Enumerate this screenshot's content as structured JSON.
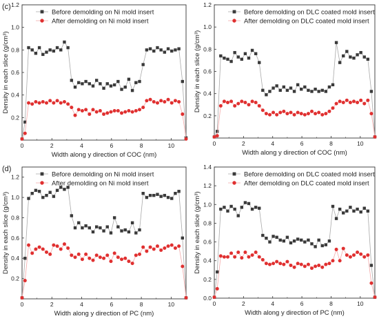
{
  "chart_data": [
    {
      "id": "c",
      "panel_label": "(c)",
      "type": "scatter",
      "xlabel": "Width along y direction of COC (nm)",
      "ylabel": "Density in each slice (g/cm³)",
      "xlim": [
        0,
        11
      ],
      "ylim": [
        0,
        1.2
      ],
      "xticks": [
        0,
        2,
        4,
        6,
        8,
        10
      ],
      "yticks": [
        0.2,
        0.4,
        0.6,
        0.8,
        1.0,
        1.2
      ],
      "ytick_labels": [
        "0.2",
        "0.4",
        "0.6",
        "0.8",
        "1.0",
        "1.2"
      ],
      "legend_position": "top-left",
      "series": [
        {
          "name": "Before demolding on Ni mold insert",
          "marker": "square",
          "color": "#3a3a3a",
          "line_color": "#a8a8a8",
          "x": [
            0,
            0.2,
            0.44,
            0.68,
            0.92,
            1.16,
            1.4,
            1.64,
            1.88,
            2.12,
            2.36,
            2.6,
            2.84,
            3.08,
            3.32,
            3.56,
            3.8,
            4.04,
            4.28,
            4.52,
            4.76,
            5.0,
            5.24,
            5.48,
            5.72,
            5.96,
            6.2,
            6.44,
            6.68,
            6.92,
            7.16,
            7.4,
            7.64,
            7.88,
            8.12,
            8.36,
            8.6,
            8.84,
            9.08,
            9.32,
            9.56,
            9.8,
            10.04,
            10.28,
            10.52,
            10.76,
            11.0
          ],
          "y": [
            0.01,
            0.16,
            0.82,
            0.8,
            0.77,
            0.82,
            0.76,
            0.78,
            0.8,
            0.79,
            0.82,
            0.8,
            0.87,
            0.82,
            0.53,
            0.47,
            0.51,
            0.5,
            0.52,
            0.5,
            0.48,
            0.53,
            0.5,
            0.46,
            0.5,
            0.48,
            0.49,
            0.52,
            0.45,
            0.47,
            0.54,
            0.44,
            0.51,
            0.52,
            0.67,
            0.8,
            0.81,
            0.79,
            0.82,
            0.8,
            0.78,
            0.81,
            0.79,
            0.8,
            0.81,
            0.52,
            0.02
          ]
        },
        {
          "name": "After demolding on Ni mold insert",
          "marker": "circle",
          "color": "#e03030",
          "line_color": "#f3a8a8",
          "x": [
            0,
            0.2,
            0.44,
            0.68,
            0.92,
            1.16,
            1.4,
            1.64,
            1.88,
            2.12,
            2.36,
            2.6,
            2.84,
            3.08,
            3.32,
            3.56,
            3.8,
            4.04,
            4.28,
            4.52,
            4.76,
            5.0,
            5.24,
            5.48,
            5.72,
            5.96,
            6.2,
            6.44,
            6.68,
            6.92,
            7.16,
            7.4,
            7.64,
            7.88,
            8.12,
            8.36,
            8.6,
            8.84,
            9.08,
            9.32,
            9.56,
            9.8,
            10.04,
            10.28,
            10.52,
            10.76,
            11.0
          ],
          "y": [
            0.01,
            0.06,
            0.33,
            0.32,
            0.34,
            0.33,
            0.34,
            0.33,
            0.35,
            0.33,
            0.35,
            0.33,
            0.34,
            0.32,
            0.29,
            0.22,
            0.27,
            0.26,
            0.27,
            0.23,
            0.27,
            0.25,
            0.26,
            0.23,
            0.24,
            0.25,
            0.26,
            0.26,
            0.24,
            0.25,
            0.26,
            0.25,
            0.26,
            0.27,
            0.29,
            0.35,
            0.36,
            0.34,
            0.33,
            0.35,
            0.34,
            0.36,
            0.33,
            0.35,
            0.34,
            0.23,
            0.01
          ]
        }
      ]
    },
    {
      "id": "c2",
      "panel_label": "",
      "type": "scatter",
      "xlabel": "Width along y direction of COC (nm)",
      "ylabel": "Density in each slice (g/cm³)",
      "xlim": [
        0,
        11
      ],
      "ylim": [
        0,
        1.2
      ],
      "xticks": [
        0,
        2,
        4,
        6,
        8,
        10
      ],
      "yticks": [
        0.2,
        0.4,
        0.6,
        0.8,
        1.0,
        1.2
      ],
      "ytick_labels": [
        "0.2",
        "0.4",
        "0.6",
        "0.8",
        "1.0",
        "1.2"
      ],
      "legend_position": "top-left",
      "series": [
        {
          "name": "Before demolding on DLC coated mold insert",
          "marker": "square",
          "color": "#3a3a3a",
          "line_color": "#a8a8a8",
          "x": [
            0,
            0.2,
            0.44,
            0.68,
            0.92,
            1.16,
            1.4,
            1.64,
            1.88,
            2.12,
            2.36,
            2.6,
            2.84,
            3.08,
            3.32,
            3.56,
            3.8,
            4.04,
            4.28,
            4.52,
            4.76,
            5.0,
            5.24,
            5.48,
            5.72,
            5.96,
            6.2,
            6.44,
            6.68,
            6.92,
            7.16,
            7.4,
            7.64,
            7.88,
            8.12,
            8.36,
            8.6,
            8.84,
            9.08,
            9.32,
            9.56,
            9.8,
            10.04,
            10.28,
            10.52,
            10.76,
            11.0
          ],
          "y": [
            0.01,
            0.06,
            0.74,
            0.72,
            0.71,
            0.69,
            0.77,
            0.73,
            0.71,
            0.76,
            0.72,
            0.79,
            0.76,
            0.68,
            0.43,
            0.39,
            0.42,
            0.45,
            0.47,
            0.43,
            0.46,
            0.43,
            0.45,
            0.42,
            0.48,
            0.44,
            0.46,
            0.43,
            0.42,
            0.44,
            0.42,
            0.43,
            0.42,
            0.46,
            0.48,
            0.86,
            0.68,
            0.74,
            0.78,
            0.73,
            0.72,
            0.75,
            0.77,
            0.73,
            0.71,
            0.42,
            0.01
          ]
        },
        {
          "name": "After demolding on DLC coated mold insert",
          "marker": "circle",
          "color": "#e03030",
          "line_color": "#f3a8a8",
          "x": [
            0,
            0.2,
            0.44,
            0.68,
            0.92,
            1.16,
            1.4,
            1.64,
            1.88,
            2.12,
            2.36,
            2.6,
            2.84,
            3.08,
            3.32,
            3.56,
            3.8,
            4.04,
            4.28,
            4.52,
            4.76,
            5.0,
            5.24,
            5.48,
            5.72,
            5.96,
            6.2,
            6.44,
            6.68,
            6.92,
            7.16,
            7.4,
            7.64,
            7.88,
            8.12,
            8.36,
            8.6,
            8.84,
            9.08,
            9.32,
            9.56,
            9.8,
            10.04,
            10.28,
            10.52,
            10.76,
            11.0
          ],
          "y": [
            0.01,
            0.02,
            0.29,
            0.33,
            0.32,
            0.33,
            0.29,
            0.31,
            0.33,
            0.32,
            0.3,
            0.33,
            0.32,
            0.29,
            0.25,
            0.22,
            0.21,
            0.23,
            0.21,
            0.23,
            0.24,
            0.22,
            0.23,
            0.21,
            0.23,
            0.22,
            0.21,
            0.22,
            0.24,
            0.22,
            0.23,
            0.21,
            0.22,
            0.24,
            0.27,
            0.31,
            0.33,
            0.32,
            0.34,
            0.32,
            0.33,
            0.32,
            0.34,
            0.31,
            0.34,
            0.22,
            0.01
          ]
        }
      ]
    },
    {
      "id": "d",
      "panel_label": "(d)",
      "type": "scatter",
      "xlabel": "Width along y direction of PC (nm)",
      "ylabel": "Density in each slice (g/cm³)",
      "xlim": [
        0,
        11
      ],
      "ylim": [
        0,
        1.3
      ],
      "xticks": [
        0,
        2,
        4,
        6,
        8,
        10
      ],
      "yticks": [
        0.2,
        0.4,
        0.6,
        0.8,
        1.0,
        1.2
      ],
      "ytick_labels": [
        "0.2",
        "0.4",
        "0.6",
        "0.8",
        "1.0",
        "1.2"
      ],
      "legend_position": "top-left",
      "series": [
        {
          "name": "Before demolding on Ni mold insert",
          "marker": "square",
          "color": "#3a3a3a",
          "line_color": "#a8a8a8",
          "x": [
            0,
            0.2,
            0.44,
            0.68,
            0.92,
            1.16,
            1.4,
            1.64,
            1.88,
            2.12,
            2.36,
            2.6,
            2.84,
            3.08,
            3.32,
            3.56,
            3.8,
            4.04,
            4.28,
            4.52,
            4.76,
            5.0,
            5.24,
            5.48,
            5.72,
            5.96,
            6.2,
            6.44,
            6.68,
            6.92,
            7.16,
            7.4,
            7.64,
            7.88,
            8.12,
            8.36,
            8.6,
            8.84,
            9.08,
            9.32,
            9.56,
            9.8,
            10.04,
            10.28,
            10.52,
            10.76,
            11.0
          ],
          "y": [
            0.01,
            0.4,
            0.99,
            1.04,
            1.07,
            1.06,
            1.0,
            1.02,
            1.05,
            1.01,
            1.07,
            1.1,
            1.08,
            1.1,
            0.82,
            0.7,
            0.75,
            0.7,
            0.72,
            0.7,
            0.66,
            0.71,
            0.7,
            0.67,
            0.71,
            0.65,
            0.8,
            0.71,
            0.67,
            0.68,
            0.66,
            0.75,
            0.65,
            0.68,
            1.04,
            1.0,
            1.02,
            1.02,
            1.03,
            1.01,
            1.02,
            1.0,
            0.99,
            1.04,
            1.06,
            0.6,
            0.01
          ]
        },
        {
          "name": "After demolding on Ni mold insert",
          "marker": "circle",
          "color": "#e03030",
          "line_color": "#f3a8a8",
          "x": [
            0,
            0.2,
            0.44,
            0.68,
            0.92,
            1.16,
            1.4,
            1.64,
            1.88,
            2.12,
            2.36,
            2.6,
            2.84,
            3.08,
            3.32,
            3.56,
            3.8,
            4.04,
            4.28,
            4.52,
            4.76,
            5.0,
            5.24,
            5.48,
            5.72,
            5.96,
            6.2,
            6.44,
            6.68,
            6.92,
            7.16,
            7.4,
            7.64,
            7.88,
            8.12,
            8.36,
            8.6,
            8.84,
            9.08,
            9.32,
            9.56,
            9.8,
            10.04,
            10.28,
            10.52,
            10.76,
            11.0
          ],
          "y": [
            0.01,
            0.18,
            0.53,
            0.45,
            0.49,
            0.51,
            0.49,
            0.46,
            0.44,
            0.53,
            0.52,
            0.49,
            0.54,
            0.5,
            0.43,
            0.41,
            0.44,
            0.39,
            0.44,
            0.4,
            0.38,
            0.43,
            0.41,
            0.4,
            0.43,
            0.37,
            0.45,
            0.41,
            0.39,
            0.4,
            0.37,
            0.35,
            0.43,
            0.44,
            0.51,
            0.47,
            0.51,
            0.49,
            0.52,
            0.48,
            0.5,
            0.52,
            0.53,
            0.5,
            0.52,
            0.32,
            0.01
          ]
        }
      ]
    },
    {
      "id": "d2",
      "panel_label": "",
      "type": "scatter",
      "xlabel": "Width along y direction of PC (nm)",
      "ylabel": "Density in each slice (g/cm³)",
      "xlim": [
        0,
        11
      ],
      "ylim": [
        0,
        1.4
      ],
      "xticks": [
        0,
        2,
        4,
        6,
        8,
        10
      ],
      "yticks": [
        0.0,
        0.2,
        0.4,
        0.6,
        0.8,
        1.0,
        1.2,
        1.4
      ],
      "ytick_labels": [
        "0.0",
        "0.2",
        "0.4",
        "0.6",
        "0.8",
        "1.0",
        "1.2",
        "1.4"
      ],
      "legend_position": "top-left",
      "series": [
        {
          "name": "Before demolding on DLC coated mold insert",
          "marker": "square",
          "color": "#3a3a3a",
          "line_color": "#a8a8a8",
          "x": [
            0,
            0.2,
            0.44,
            0.68,
            0.92,
            1.16,
            1.4,
            1.64,
            1.88,
            2.12,
            2.36,
            2.6,
            2.84,
            3.08,
            3.32,
            3.56,
            3.8,
            4.04,
            4.28,
            4.52,
            4.76,
            5.0,
            5.24,
            5.48,
            5.72,
            5.96,
            6.2,
            6.44,
            6.68,
            6.92,
            7.16,
            7.4,
            7.64,
            7.88,
            8.12,
            8.36,
            8.6,
            8.84,
            9.08,
            9.32,
            9.56,
            9.8,
            10.04,
            10.28,
            10.52,
            10.76,
            11.0
          ],
          "y": [
            0.01,
            0.28,
            0.95,
            0.97,
            0.93,
            0.98,
            0.95,
            0.88,
            0.97,
            1.02,
            1.01,
            0.95,
            0.97,
            0.96,
            0.67,
            0.64,
            0.6,
            0.66,
            0.65,
            0.62,
            0.61,
            0.65,
            0.59,
            0.61,
            0.63,
            0.62,
            0.6,
            0.62,
            0.58,
            0.55,
            0.62,
            0.56,
            0.57,
            0.61,
            0.98,
            0.85,
            0.95,
            0.91,
            0.93,
            0.97,
            0.93,
            0.95,
            0.92,
            0.96,
            0.93,
            0.35,
            0.01
          ]
        },
        {
          "name": "After demolding on DLC coated mold insert",
          "marker": "circle",
          "color": "#e03030",
          "line_color": "#f3a8a8",
          "x": [
            0,
            0.2,
            0.44,
            0.68,
            0.92,
            1.16,
            1.4,
            1.64,
            1.88,
            2.12,
            2.36,
            2.6,
            2.84,
            3.08,
            3.32,
            3.56,
            3.8,
            4.04,
            4.28,
            4.52,
            4.76,
            5.0,
            5.24,
            5.48,
            5.72,
            5.96,
            6.2,
            6.44,
            6.68,
            6.92,
            7.16,
            7.4,
            7.64,
            7.88,
            8.12,
            8.36,
            8.6,
            8.84,
            9.08,
            9.32,
            9.56,
            9.8,
            10.04,
            10.28,
            10.52,
            10.76,
            11.0
          ],
          "y": [
            0.01,
            0.1,
            0.45,
            0.44,
            0.44,
            0.48,
            0.44,
            0.49,
            0.43,
            0.49,
            0.44,
            0.46,
            0.49,
            0.44,
            0.41,
            0.37,
            0.36,
            0.37,
            0.39,
            0.37,
            0.36,
            0.39,
            0.35,
            0.33,
            0.37,
            0.36,
            0.34,
            0.36,
            0.32,
            0.34,
            0.35,
            0.33,
            0.36,
            0.37,
            0.4,
            0.52,
            0.4,
            0.53,
            0.46,
            0.44,
            0.46,
            0.49,
            0.47,
            0.44,
            0.46,
            0.16,
            0.01
          ]
        }
      ]
    }
  ]
}
